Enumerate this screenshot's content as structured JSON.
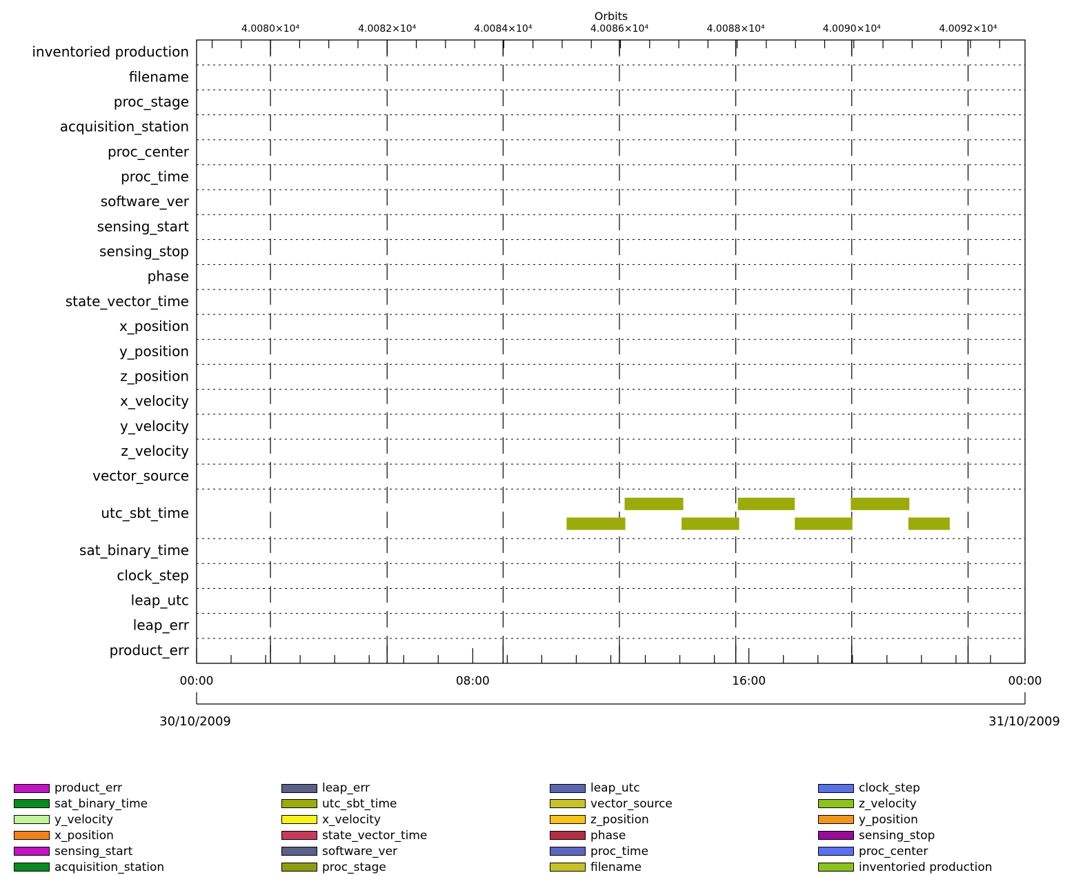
{
  "chart_data": {
    "type": "timeline",
    "top_axis_title": "Orbits",
    "top_ticks": [
      {
        "label": "4.0080×10⁴",
        "hours": 2.14
      },
      {
        "label": "4.0082×10⁴",
        "hours": 5.52
      },
      {
        "label": "4.0084×10⁴",
        "hours": 8.88
      },
      {
        "label": "4.0086×10⁴",
        "hours": 12.25
      },
      {
        "label": "4.0088×10⁴",
        "hours": 15.62
      },
      {
        "label": "4.0090×10⁴",
        "hours": 18.98
      },
      {
        "label": "4.0092×10⁴",
        "hours": 22.35
      }
    ],
    "x_start_label": "30/10/2009",
    "x_end_label": "31/10/2009",
    "x_range_hours": [
      0,
      24
    ],
    "bottom_ticks": [
      {
        "label": "00:00",
        "hours": 0
      },
      {
        "label": "08:00",
        "hours": 8
      },
      {
        "label": "16:00",
        "hours": 16
      },
      {
        "label": "00:00",
        "hours": 24
      }
    ],
    "categories": [
      "inventoried production",
      "filename",
      "proc_stage",
      "acquisition_station",
      "proc_center",
      "proc_time",
      "software_ver",
      "sensing_start",
      "sensing_stop",
      "phase",
      "state_vector_time",
      "x_position",
      "y_position",
      "z_position",
      "x_velocity",
      "y_velocity",
      "z_velocity",
      "vector_source",
      "utc_sbt_time",
      "sat_binary_time",
      "clock_step",
      "leap_utc",
      "leap_err",
      "product_err"
    ],
    "bars": [
      {
        "category": "utc_sbt_time",
        "lane": 0,
        "start": 12.4,
        "end": 14.1,
        "color": "#9cab0c"
      },
      {
        "category": "utc_sbt_time",
        "lane": 0,
        "start": 15.68,
        "end": 17.33,
        "color": "#9cab0c"
      },
      {
        "category": "utc_sbt_time",
        "lane": 0,
        "start": 18.95,
        "end": 20.65,
        "color": "#9cab0c"
      },
      {
        "category": "utc_sbt_time",
        "lane": 1,
        "start": 10.72,
        "end": 12.42,
        "color": "#9cab0c"
      },
      {
        "category": "utc_sbt_time",
        "lane": 1,
        "start": 14.05,
        "end": 15.72,
        "color": "#9cab0c"
      },
      {
        "category": "utc_sbt_time",
        "lane": 1,
        "start": 17.33,
        "end": 19.0,
        "color": "#9cab0c"
      },
      {
        "category": "utc_sbt_time",
        "lane": 1,
        "start": 20.62,
        "end": 21.82,
        "color": "#9cab0c"
      }
    ],
    "legend": [
      {
        "label": "product_err",
        "color": "#c015c0"
      },
      {
        "label": "leap_err",
        "color": "#5a6087"
      },
      {
        "label": "leap_utc",
        "color": "#5a66b0"
      },
      {
        "label": "clock_step",
        "color": "#5a70e6"
      },
      {
        "label": "sat_binary_time",
        "color": "#0b8a22"
      },
      {
        "label": "utc_sbt_time",
        "color": "#9cab0c"
      },
      {
        "label": "vector_source",
        "color": "#c8c22a"
      },
      {
        "label": "z_velocity",
        "color": "#8cc21e"
      },
      {
        "label": "y_velocity",
        "color": "#c0f59a"
      },
      {
        "label": "x_velocity",
        "color": "#f6f21e"
      },
      {
        "label": "z_position",
        "color": "#f6c21e"
      },
      {
        "label": "y_position",
        "color": "#f0961e"
      },
      {
        "label": "x_position",
        "color": "#f0821e"
      },
      {
        "label": "state_vector_time",
        "color": "#c43c5a"
      },
      {
        "label": "phase",
        "color": "#b03046"
      },
      {
        "label": "sensing_stop",
        "color": "#980c98"
      },
      {
        "label": "sensing_start",
        "color": "#c015c0"
      },
      {
        "label": "software_ver",
        "color": "#5a6087"
      },
      {
        "label": "proc_time",
        "color": "#5a66c0"
      },
      {
        "label": "proc_center",
        "color": "#5a70f0"
      },
      {
        "label": "acquisition_station",
        "color": "#0b8a22"
      },
      {
        "label": "proc_stage",
        "color": "#8c9c14"
      },
      {
        "label": "filename",
        "color": "#c8c22a"
      },
      {
        "label": "inventoried production",
        "color": "#8cc21e"
      }
    ]
  }
}
